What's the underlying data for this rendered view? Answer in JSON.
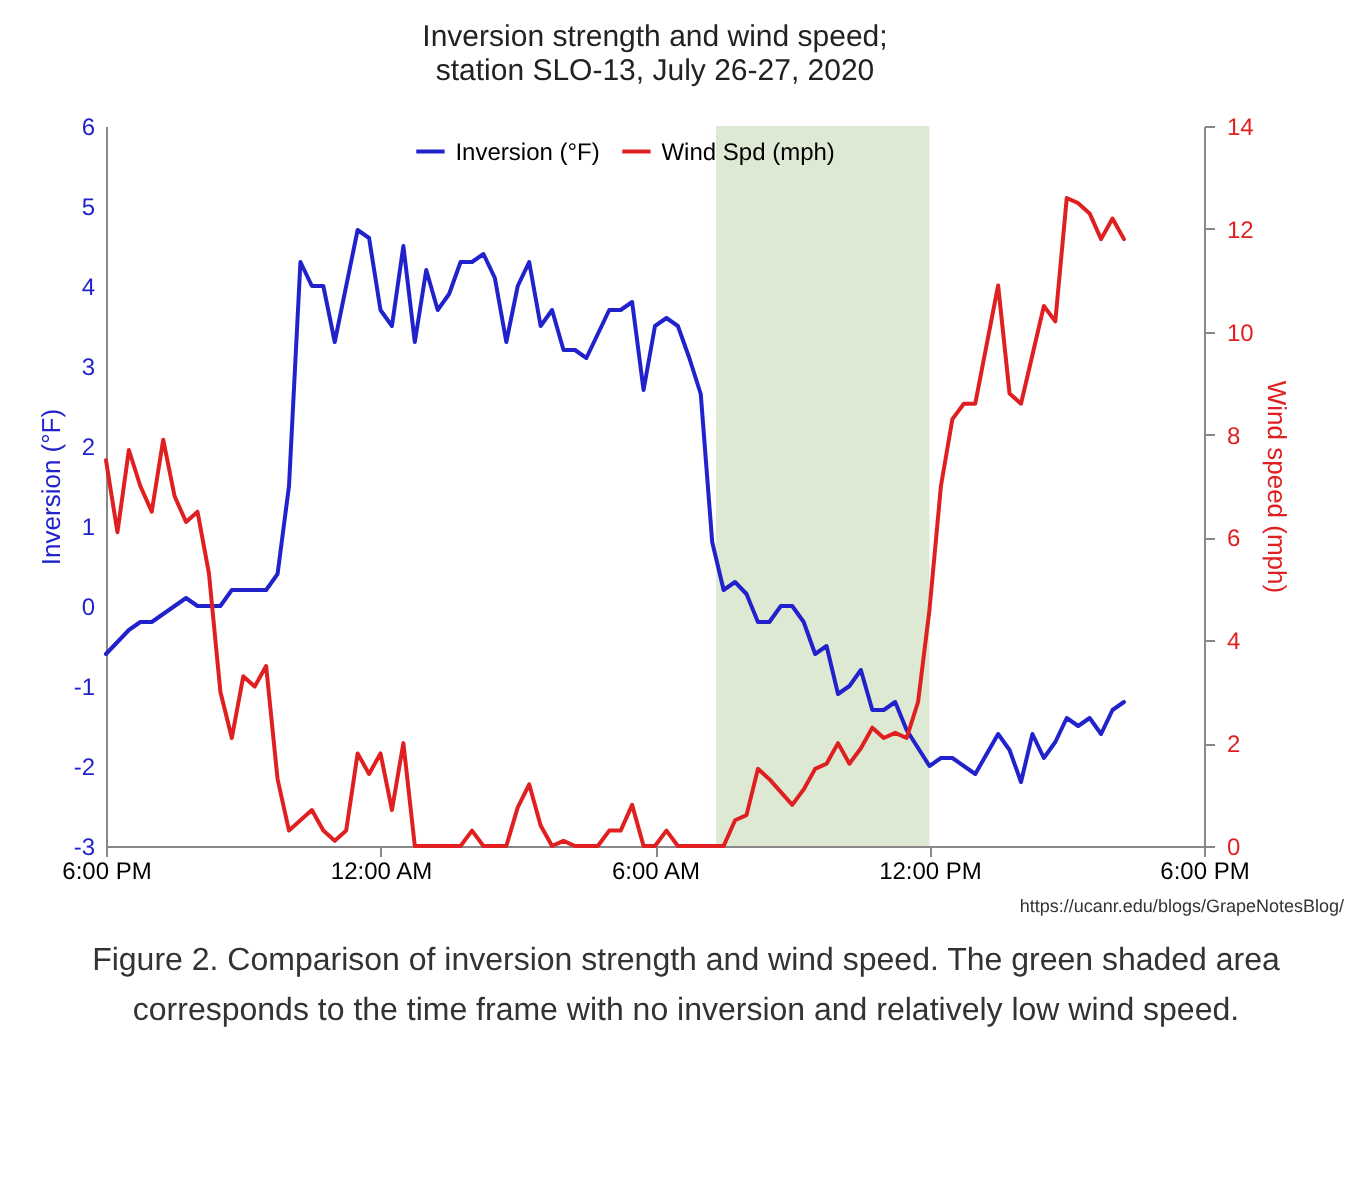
{
  "chart_data": {
    "type": "line",
    "title": "Inversion strength and wind speed;\nstation SLO-13, July 26-27, 2020",
    "ylabel": "Inversion (°F)",
    "y2label": "Wind speed (mph)",
    "xlim": [
      "2020-07-26T18:00",
      "2020-07-27T18:00"
    ],
    "xticks": [
      {
        "value": "2020-07-26T18:00",
        "label": "6:00 PM"
      },
      {
        "value": "2020-07-27T00:00",
        "label": "12:00 AM"
      },
      {
        "value": "2020-07-27T06:00",
        "label": "6:00 AM"
      },
      {
        "value": "2020-07-27T12:00",
        "label": "12:00 PM"
      },
      {
        "value": "2020-07-27T18:00",
        "label": "6:00 PM"
      }
    ],
    "ylim": [
      -3,
      6
    ],
    "yticks": [
      -3,
      -2,
      -1,
      0,
      1,
      2,
      3,
      4,
      5,
      6
    ],
    "y2lim": [
      0,
      14
    ],
    "y2ticks": [
      0,
      2,
      4,
      6,
      8,
      10,
      12,
      14
    ],
    "grid": false,
    "legend": "top",
    "line_style": "solid",
    "bands": [
      {
        "axis": "x",
        "from": "2020-07-27T07:20",
        "to": "2020-07-27T12:00",
        "color": "#dde9d3"
      }
    ],
    "series": [
      {
        "name": "Inversion (°F)",
        "color": "#2222cc",
        "x": [
          "2020-07-26T18:00",
          "2020-07-26T18:30",
          "2020-07-26T18:45",
          "2020-07-26T19:00",
          "2020-07-26T19:45",
          "2020-07-26T20:00",
          "2020-07-26T20:30",
          "2020-07-26T20:45",
          "2020-07-26T21:30",
          "2020-07-26T21:45",
          "2020-07-26T22:00",
          "2020-07-26T22:15",
          "2020-07-26T22:30",
          "2020-07-26T22:45",
          "2020-07-26T23:00",
          "2020-07-26T23:30",
          "2020-07-26T23:45",
          "2020-07-27T00:00",
          "2020-07-27T00:15",
          "2020-07-27T00:30",
          "2020-07-27T00:45",
          "2020-07-27T01:00",
          "2020-07-27T01:15",
          "2020-07-27T01:30",
          "2020-07-27T01:45",
          "2020-07-27T02:00",
          "2020-07-27T02:15",
          "2020-07-27T02:30",
          "2020-07-27T02:45",
          "2020-07-27T03:00",
          "2020-07-27T03:15",
          "2020-07-27T03:30",
          "2020-07-27T03:45",
          "2020-07-27T04:00",
          "2020-07-27T04:15",
          "2020-07-27T04:30",
          "2020-07-27T05:00",
          "2020-07-27T05:15",
          "2020-07-27T05:30",
          "2020-07-27T05:45",
          "2020-07-27T06:00",
          "2020-07-27T06:15",
          "2020-07-27T06:30",
          "2020-07-27T06:45",
          "2020-07-27T07:00",
          "2020-07-27T07:15",
          "2020-07-27T07:30",
          "2020-07-27T07:45",
          "2020-07-27T08:00",
          "2020-07-27T08:15",
          "2020-07-27T08:30",
          "2020-07-27T08:45",
          "2020-07-27T09:00",
          "2020-07-27T09:15",
          "2020-07-27T09:30",
          "2020-07-27T09:45",
          "2020-07-27T10:00",
          "2020-07-27T10:15",
          "2020-07-27T10:30",
          "2020-07-27T10:45",
          "2020-07-27T11:00",
          "2020-07-27T11:15",
          "2020-07-27T11:30",
          "2020-07-27T12:00",
          "2020-07-27T12:15",
          "2020-07-27T12:30",
          "2020-07-27T13:00",
          "2020-07-27T13:30",
          "2020-07-27T13:45",
          "2020-07-27T14:00",
          "2020-07-27T14:15",
          "2020-07-27T14:30",
          "2020-07-27T14:45",
          "2020-07-27T15:00",
          "2020-07-27T15:15",
          "2020-07-27T15:30",
          "2020-07-27T15:45",
          "2020-07-27T16:00",
          "2020-07-27T16:15"
        ],
        "values": [
          -0.6,
          -0.3,
          -0.2,
          -0.2,
          0.1,
          0,
          0,
          0.2,
          0.2,
          0.4,
          1.5,
          4.3,
          4.0,
          4.0,
          3.3,
          4.7,
          4.6,
          3.7,
          3.5,
          4.5,
          3.3,
          4.2,
          3.7,
          3.9,
          4.3,
          4.3,
          4.4,
          4.1,
          3.3,
          4.0,
          4.3,
          3.5,
          3.7,
          3.2,
          3.2,
          3.1,
          3.7,
          3.7,
          3.8,
          2.7,
          3.5,
          3.6,
          3.5,
          3.1,
          2.65,
          0.8,
          0.2,
          0.3,
          0.15,
          -0.2,
          -0.2,
          0,
          0,
          -0.2,
          -0.6,
          -0.5,
          -1.1,
          -1.0,
          -0.8,
          -1.3,
          -1.3,
          -1.2,
          -1.55,
          -2.0,
          -1.9,
          -1.9,
          -2.1,
          -1.6,
          -1.8,
          -2.2,
          -1.6,
          -1.9,
          -1.7,
          -1.4,
          -1.5,
          -1.4,
          -1.6,
          -1.3,
          -1.2
        ]
      },
      {
        "name": "Wind Spd (mph)",
        "color": "#e02020",
        "axis": "y2",
        "x": [
          "2020-07-26T18:00",
          "2020-07-26T18:15",
          "2020-07-26T18:30",
          "2020-07-26T18:45",
          "2020-07-26T19:00",
          "2020-07-26T19:15",
          "2020-07-26T19:30",
          "2020-07-26T19:45",
          "2020-07-26T20:00",
          "2020-07-26T20:15",
          "2020-07-26T20:30",
          "2020-07-26T20:45",
          "2020-07-26T21:00",
          "2020-07-26T21:15",
          "2020-07-26T21:30",
          "2020-07-26T21:45",
          "2020-07-26T22:00",
          "2020-07-26T22:15",
          "2020-07-26T22:30",
          "2020-07-26T22:45",
          "2020-07-26T23:00",
          "2020-07-26T23:15",
          "2020-07-26T23:30",
          "2020-07-26T23:45",
          "2020-07-27T00:00",
          "2020-07-27T00:15",
          "2020-07-27T00:30",
          "2020-07-27T00:45",
          "2020-07-27T01:45",
          "2020-07-27T02:00",
          "2020-07-27T02:15",
          "2020-07-27T02:45",
          "2020-07-27T03:00",
          "2020-07-27T03:15",
          "2020-07-27T03:30",
          "2020-07-27T03:45",
          "2020-07-27T04:00",
          "2020-07-27T04:15",
          "2020-07-27T04:45",
          "2020-07-27T05:00",
          "2020-07-27T05:15",
          "2020-07-27T05:30",
          "2020-07-27T05:45",
          "2020-07-27T06:00",
          "2020-07-27T06:15",
          "2020-07-27T06:30",
          "2020-07-27T07:30",
          "2020-07-27T07:45",
          "2020-07-27T08:00",
          "2020-07-27T08:15",
          "2020-07-27T08:30",
          "2020-07-27T09:00",
          "2020-07-27T09:15",
          "2020-07-27T09:30",
          "2020-07-27T09:45",
          "2020-07-27T10:00",
          "2020-07-27T10:15",
          "2020-07-27T10:30",
          "2020-07-27T10:45",
          "2020-07-27T11:00",
          "2020-07-27T11:15",
          "2020-07-27T11:30",
          "2020-07-27T11:45",
          "2020-07-27T12:00",
          "2020-07-27T12:15",
          "2020-07-27T12:30",
          "2020-07-27T12:45",
          "2020-07-27T13:00",
          "2020-07-27T13:30",
          "2020-07-27T13:45",
          "2020-07-27T14:00",
          "2020-07-27T14:30",
          "2020-07-27T14:45",
          "2020-07-27T15:00",
          "2020-07-27T15:15",
          "2020-07-27T15:30",
          "2020-07-27T15:45",
          "2020-07-27T16:00",
          "2020-07-27T16:15"
        ],
        "values": [
          7.5,
          6.1,
          7.7,
          7.0,
          6.5,
          7.9,
          6.8,
          6.3,
          6.5,
          5.3,
          3.0,
          2.1,
          3.3,
          3.1,
          3.5,
          1.3,
          0.3,
          0.5,
          0.7,
          0.3,
          0.1,
          0.3,
          1.8,
          1.4,
          1.8,
          0.7,
          2.0,
          0,
          0,
          0.3,
          0,
          0,
          0.75,
          1.2,
          0.4,
          0,
          0.1,
          0,
          0,
          0.3,
          0.3,
          0.8,
          0,
          0,
          0.3,
          0,
          0,
          0.5,
          0.6,
          1.5,
          1.3,
          0.8,
          1.1,
          1.5,
          1.6,
          2.0,
          1.6,
          1.9,
          2.3,
          2.1,
          2.2,
          2.1,
          2.8,
          4.6,
          7.0,
          8.3,
          8.6,
          8.6,
          10.9,
          8.8,
          8.6,
          10.5,
          10.2,
          12.6,
          12.5,
          12.3,
          11.8,
          12.2,
          11.8
        ]
      }
    ],
    "annotations": [
      "https://ucanr.edu/blogs/GrapeNotesBlog/",
      "Figure 2. Comparison of inversion strength and wind speed. The green shaded area corresponds to the time frame with no inversion and relatively low wind speed."
    ]
  }
}
